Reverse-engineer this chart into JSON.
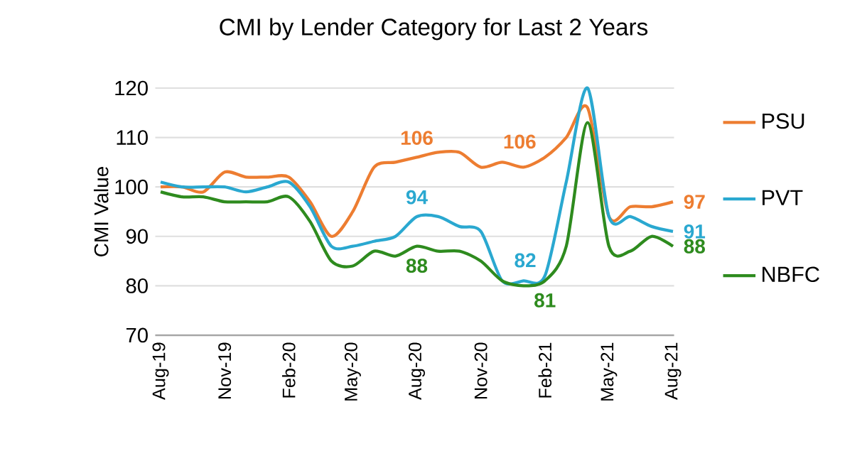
{
  "chart_data": {
    "type": "line",
    "title": "CMI by Lender Category for Last 2 Years",
    "ylabel": "CMI Value",
    "categories": [
      "Aug-19",
      null,
      null,
      "Nov-19",
      null,
      null,
      "Feb-20",
      null,
      null,
      "May-20",
      null,
      null,
      "Aug-20",
      null,
      null,
      "Nov-20",
      null,
      null,
      "Feb-21",
      null,
      null,
      "May-21",
      null,
      null,
      "Aug-21"
    ],
    "series": [
      {
        "name": "PSU",
        "color": "#ed7d31",
        "values": [
          100,
          100,
          99,
          103,
          102,
          102,
          102,
          97,
          90,
          95,
          104,
          105,
          106,
          107,
          107,
          104,
          105,
          104,
          106,
          110,
          116,
          94,
          96,
          96,
          97
        ],
        "value_labels": [
          null,
          null,
          null,
          null,
          null,
          null,
          null,
          null,
          null,
          null,
          null,
          null,
          "106",
          null,
          null,
          null,
          null,
          null,
          "106",
          null,
          null,
          null,
          null,
          null,
          "97"
        ]
      },
      {
        "name": "PVT",
        "color": "#2aa8d0",
        "values": [
          101,
          100,
          100,
          100,
          99,
          100,
          101,
          96,
          88,
          88,
          89,
          90,
          94,
          94,
          92,
          91,
          81,
          81,
          82,
          101,
          120,
          94,
          94,
          92,
          91
        ],
        "value_labels": [
          null,
          null,
          null,
          null,
          null,
          null,
          null,
          null,
          null,
          null,
          null,
          null,
          "94",
          null,
          null,
          null,
          null,
          null,
          "82",
          null,
          null,
          null,
          null,
          null,
          "91"
        ]
      },
      {
        "name": "NBFC",
        "color": "#2e8b1e",
        "values": [
          99,
          98,
          98,
          97,
          97,
          97,
          98,
          93,
          85,
          84,
          87,
          86,
          88,
          87,
          87,
          85,
          81,
          80,
          81,
          88,
          113,
          88,
          87,
          90,
          88
        ],
        "value_labels": [
          null,
          null,
          null,
          null,
          null,
          null,
          null,
          null,
          null,
          null,
          null,
          null,
          "88",
          null,
          null,
          null,
          null,
          null,
          "81",
          null,
          null,
          null,
          null,
          null,
          "88"
        ]
      }
    ],
    "ylim": [
      70,
      120
    ],
    "yticks": [
      70,
      80,
      90,
      100,
      110,
      120
    ],
    "grid": "y",
    "legend": "right",
    "marker": "none",
    "line_style": "solid"
  }
}
